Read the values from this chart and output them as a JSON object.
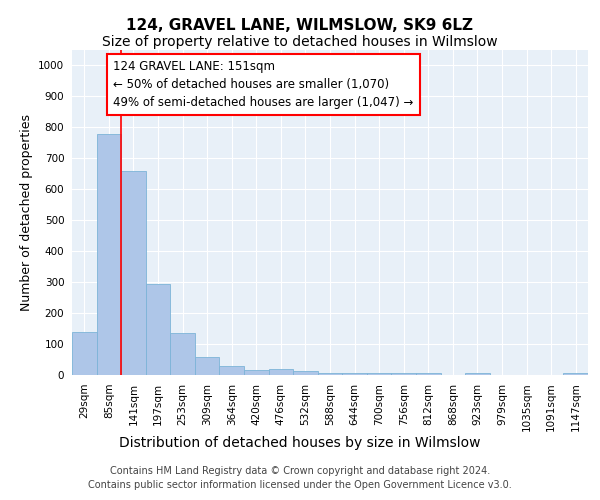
{
  "title": "124, GRAVEL LANE, WILMSLOW, SK9 6LZ",
  "subtitle": "Size of property relative to detached houses in Wilmslow",
  "xlabel": "Distribution of detached houses by size in Wilmslow",
  "ylabel": "Number of detached properties",
  "bar_color": "#aec6e8",
  "bar_edge_color": "#7db4d8",
  "background_color": "#e8f0f8",
  "grid_color": "white",
  "categories": [
    "29sqm",
    "85sqm",
    "141sqm",
    "197sqm",
    "253sqm",
    "309sqm",
    "364sqm",
    "420sqm",
    "476sqm",
    "532sqm",
    "588sqm",
    "644sqm",
    "700sqm",
    "756sqm",
    "812sqm",
    "868sqm",
    "923sqm",
    "979sqm",
    "1035sqm",
    "1091sqm",
    "1147sqm"
  ],
  "values": [
    140,
    780,
    660,
    295,
    135,
    58,
    30,
    15,
    20,
    13,
    7,
    5,
    5,
    5,
    5,
    0,
    5,
    0,
    0,
    0,
    5
  ],
  "ylim": [
    0,
    1050
  ],
  "yticks": [
    0,
    100,
    200,
    300,
    400,
    500,
    600,
    700,
    800,
    900,
    1000
  ],
  "vline_x_index": 2,
  "vline_color": "red",
  "annotation_text": "124 GRAVEL LANE: 151sqm\n← 50% of detached houses are smaller (1,070)\n49% of semi-detached houses are larger (1,047) →",
  "annotation_box_color": "white",
  "annotation_box_edge_color": "red",
  "footer_line1": "Contains HM Land Registry data © Crown copyright and database right 2024.",
  "footer_line2": "Contains public sector information licensed under the Open Government Licence v3.0.",
  "title_fontsize": 11,
  "subtitle_fontsize": 10,
  "xlabel_fontsize": 10,
  "ylabel_fontsize": 9,
  "tick_fontsize": 7.5,
  "annotation_fontsize": 8.5,
  "footer_fontsize": 7
}
